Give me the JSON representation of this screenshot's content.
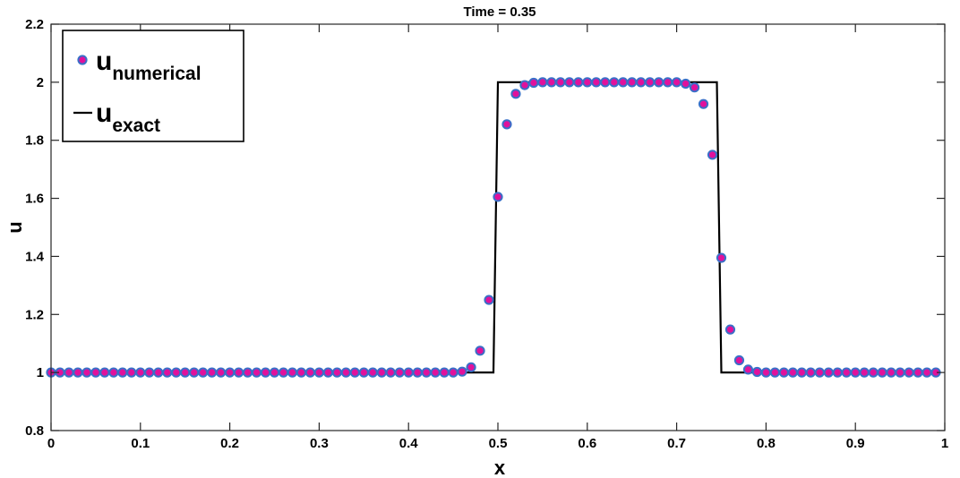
{
  "chart_data": {
    "type": "line",
    "title": "Time = 0.35",
    "xlabel": "x",
    "ylabel": "u",
    "xlim": [
      0,
      1
    ],
    "ylim": [
      0.8,
      2.2
    ],
    "xticks": [
      0,
      0.1,
      0.2,
      0.3,
      0.4,
      0.5,
      0.6,
      0.7,
      0.8,
      0.9,
      1
    ],
    "xtick_labels": [
      "0",
      "0.1",
      "0.2",
      "0.3",
      "0.4",
      "0.5",
      "0.6",
      "0.7",
      "0.8",
      "0.9",
      "1"
    ],
    "yticks": [
      0.8,
      1,
      1.2,
      1.4,
      1.6,
      1.8,
      2,
      2.2
    ],
    "ytick_labels": [
      "0.8",
      "1",
      "1.2",
      "1.4",
      "1.6",
      "1.8",
      "2",
      "2.2"
    ],
    "grid": false,
    "legend_position": "top-left",
    "series": [
      {
        "name": "u_numerical",
        "legend_main": "u",
        "legend_sub": "numerical",
        "style": "markers",
        "marker_fill": "#e0119c",
        "marker_edge": "#3a6fc8",
        "x": [
          0,
          0.01,
          0.02,
          0.03,
          0.04,
          0.05,
          0.06,
          0.07,
          0.08,
          0.09,
          0.1,
          0.11,
          0.12,
          0.13,
          0.14,
          0.15,
          0.16,
          0.17,
          0.18,
          0.19,
          0.2,
          0.21,
          0.22,
          0.23,
          0.24,
          0.25,
          0.26,
          0.27,
          0.28,
          0.29,
          0.3,
          0.31,
          0.32,
          0.33,
          0.34,
          0.35,
          0.36,
          0.37,
          0.38,
          0.39,
          0.4,
          0.41,
          0.42,
          0.43,
          0.44,
          0.45,
          0.46,
          0.47,
          0.48,
          0.49,
          0.5,
          0.51,
          0.52,
          0.53,
          0.54,
          0.55,
          0.56,
          0.57,
          0.58,
          0.59,
          0.6,
          0.61,
          0.62,
          0.63,
          0.64,
          0.65,
          0.66,
          0.67,
          0.68,
          0.69,
          0.7,
          0.71,
          0.72,
          0.73,
          0.74,
          0.75,
          0.76,
          0.77,
          0.78,
          0.79,
          0.8,
          0.81,
          0.82,
          0.83,
          0.84,
          0.85,
          0.86,
          0.87,
          0.88,
          0.89,
          0.9,
          0.91,
          0.92,
          0.93,
          0.94,
          0.95,
          0.96,
          0.97,
          0.98,
          0.99
        ],
        "y": [
          1,
          1,
          1,
          1,
          1,
          1,
          1,
          1,
          1,
          1,
          1,
          1,
          1,
          1,
          1,
          1,
          1,
          1,
          1,
          1,
          1,
          1,
          1,
          1,
          1,
          1,
          1,
          1,
          1,
          1,
          1,
          1,
          1,
          1,
          1,
          1,
          1,
          1,
          1,
          1,
          1,
          1,
          1,
          1,
          1,
          1,
          1.003,
          1.018,
          1.075,
          1.25,
          1.605,
          1.855,
          1.96,
          1.99,
          1.998,
          2,
          2,
          2,
          2,
          2,
          2,
          2,
          2,
          2,
          2,
          2,
          2,
          2,
          2,
          2,
          2,
          1.995,
          1.982,
          1.925,
          1.75,
          1.395,
          1.148,
          1.042,
          1.01,
          1.002,
          1,
          1,
          1,
          1,
          1,
          1,
          1,
          1,
          1,
          1,
          1,
          1,
          1,
          1,
          1,
          1,
          1,
          1,
          1,
          1
        ]
      },
      {
        "name": "u_exact",
        "legend_main": "u",
        "legend_sub": "exact",
        "style": "line",
        "color": "#000000",
        "x": [
          0,
          0.495,
          0.5,
          0.745,
          0.75,
          0.99
        ],
        "y": [
          1,
          1,
          2,
          2,
          1,
          1
        ]
      }
    ]
  }
}
